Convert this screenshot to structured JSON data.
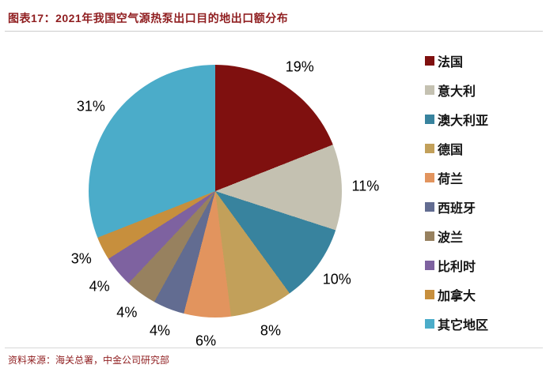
{
  "header": {
    "title": "图表17：2021年我国空气源热泵出口目的地出口额分布"
  },
  "footer": {
    "source": "资料来源：海关总署，中金公司研究部"
  },
  "colors": {
    "title_red": "#8F1D1F",
    "divider_gray": "#CDCDCD"
  },
  "chart_data": {
    "type": "pie",
    "title": "2021年我国空气源热泵出口目的地出口额分布",
    "unit": "%",
    "direction": "clockwise",
    "start_angle_deg": 0,
    "legend_position": "right",
    "categories": [
      "法国",
      "意大利",
      "澳大利亚",
      "德国",
      "荷兰",
      "西班牙",
      "波兰",
      "比利时",
      "加拿大",
      "其它地区"
    ],
    "values": [
      19,
      11,
      10,
      8,
      6,
      4,
      4,
      4,
      3,
      31
    ],
    "labels": [
      "19%",
      "11%",
      "10%",
      "8%",
      "6%",
      "4%",
      "4%",
      "4%",
      "3%",
      "31%"
    ],
    "colors": [
      "#7F100F",
      "#C4C1B1",
      "#38839E",
      "#C2A05A",
      "#E2945E",
      "#626C91",
      "#97815F",
      "#7E62A0",
      "#C78F3D",
      "#4BACC9"
    ]
  }
}
